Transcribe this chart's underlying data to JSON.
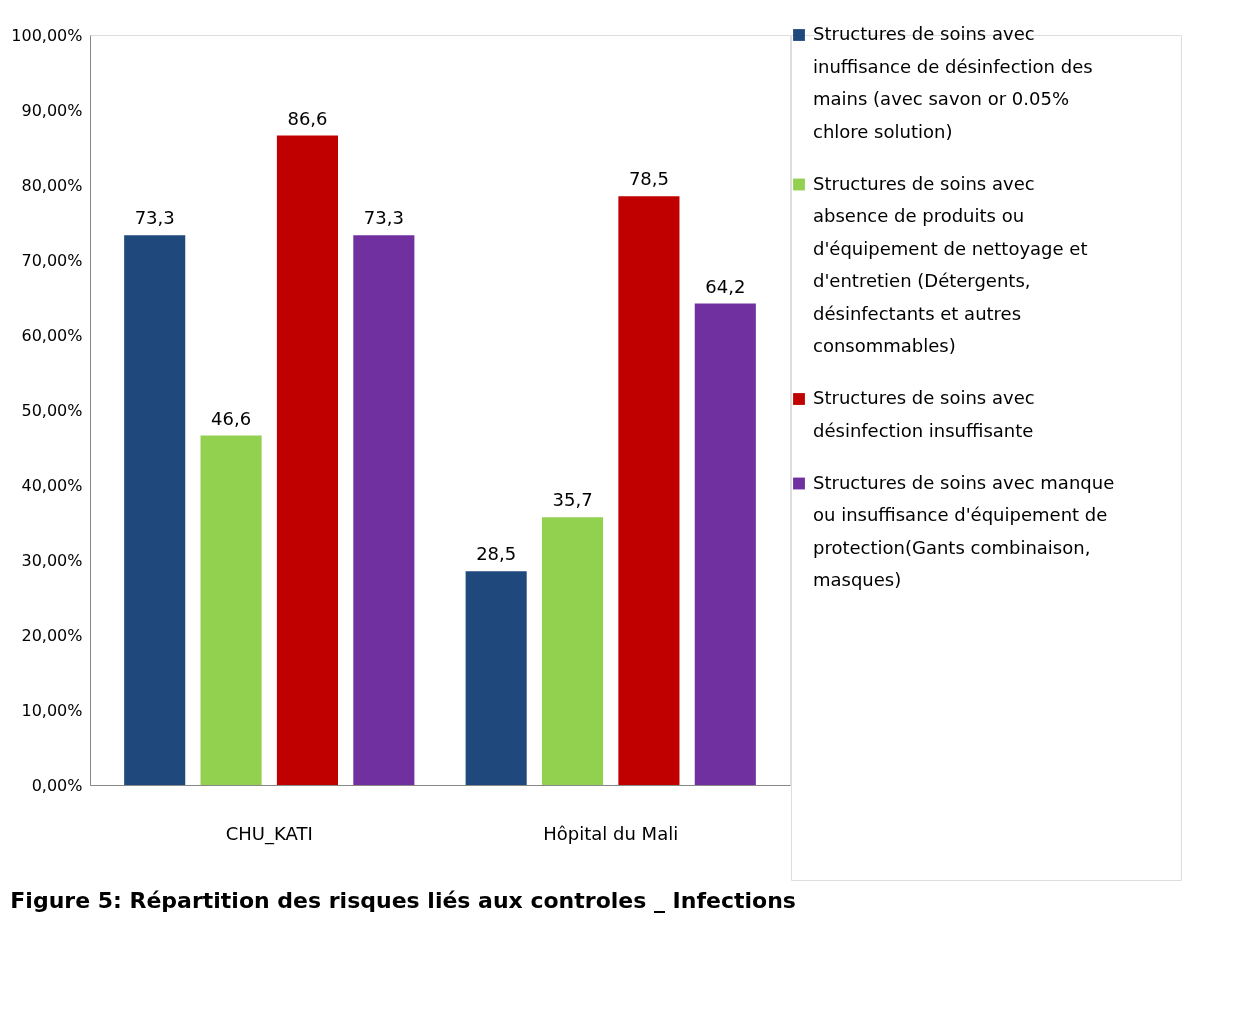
{
  "chart_data": {
    "type": "bar",
    "title": "Figure 5: Répartition des risques liés aux controles _ Infections",
    "categories": [
      "CHU_KATI",
      "Hôpital du Mali"
    ],
    "series": [
      {
        "name": "Structures de soins avec inuffisance de désinfection des mains (avec savon or 0.05% chlore solution)",
        "color": "#1f497d",
        "values": [
          73.3,
          28.5
        ],
        "value_labels": [
          "73,3",
          "28,5"
        ]
      },
      {
        "name": "Structures de soins avec absence de produits ou d'équipement de nettoyage et d'entretien (Détergents, désinfectants et autres consommables)",
        "color": "#92d050",
        "values": [
          46.6,
          35.7
        ],
        "value_labels": [
          "46,6",
          "35,7"
        ]
      },
      {
        "name": "Structures de soins avec désinfection insuffisante",
        "color": "#c00000",
        "values": [
          86.6,
          78.5
        ],
        "value_labels": [
          "86,6",
          "78,5"
        ]
      },
      {
        "name": "Structures de soins avec manque ou insuffisance d'équipement de protection(Gants combinaison, masques)",
        "color": "#7030a0",
        "values": [
          73.3,
          64.2
        ],
        "value_labels": [
          "73,3",
          "64,2"
        ]
      }
    ],
    "ylim": [
      0,
      100
    ],
    "yticks": [
      {
        "value": 0,
        "label": "0,00%"
      },
      {
        "value": 10,
        "label": "10,00%"
      },
      {
        "value": 20,
        "label": "20,00%"
      },
      {
        "value": 30,
        "label": "30,00%"
      },
      {
        "value": 40,
        "label": "40,00%"
      },
      {
        "value": 50,
        "label": "50,00%"
      },
      {
        "value": 60,
        "label": "60,00%"
      },
      {
        "value": 70,
        "label": "70,00%"
      },
      {
        "value": 80,
        "label": "80,00%"
      },
      {
        "value": 90,
        "label": "90,00%"
      },
      {
        "value": 100,
        "label": "100,00%"
      }
    ],
    "grid": false,
    "legend": "right"
  }
}
